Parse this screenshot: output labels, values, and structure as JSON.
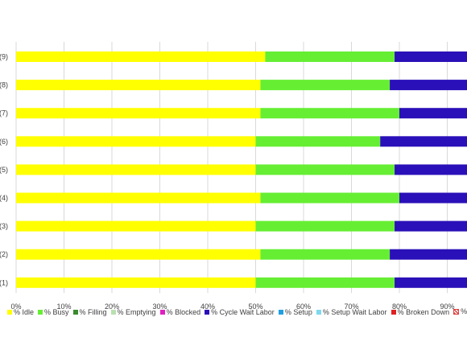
{
  "chart_data": {
    "type": "bar",
    "orientation": "horizontal",
    "stacked": true,
    "categories": [
      "(9)",
      "(8)",
      "(7)",
      "(6)",
      "(5)",
      "(4)",
      "(3)",
      "(2)",
      "(1)"
    ],
    "series": [
      {
        "name": "% Idle",
        "color": "#ffff00",
        "values": [
          52,
          51,
          51,
          50,
          50,
          51,
          50,
          51,
          50
        ]
      },
      {
        "name": "% Busy",
        "color": "#66ee33",
        "values": [
          27,
          27,
          29,
          26,
          29,
          29,
          29,
          27,
          29
        ]
      },
      {
        "name": "% Filling",
        "color": "#3a8a2e",
        "values": [
          0,
          0,
          0,
          0,
          0,
          0,
          0,
          0,
          0
        ]
      },
      {
        "name": "% Emptying",
        "color": "#b8e0b0",
        "values": [
          0,
          0,
          0,
          0,
          0,
          0,
          0,
          0,
          0
        ]
      },
      {
        "name": "% Blocked",
        "color": "#e020c0",
        "values": [
          0,
          0,
          0,
          0,
          0,
          0,
          0,
          0,
          0
        ]
      },
      {
        "name": "% Cycle Wait Labor",
        "color": "#2a10b8",
        "values": [
          21,
          22,
          20,
          24,
          21,
          20,
          21,
          22,
          21
        ]
      },
      {
        "name": "% Setup",
        "color": "#20a0e0",
        "values": [
          0,
          0,
          0,
          0,
          0,
          0,
          0,
          0,
          0
        ]
      },
      {
        "name": "% Setup Wait Labor",
        "color": "#80d8f0",
        "values": [
          0,
          0,
          0,
          0,
          0,
          0,
          0,
          0,
          0
        ]
      },
      {
        "name": "% Broken Down",
        "color": "#e02020",
        "values": [
          0,
          0,
          0,
          0,
          0,
          0,
          0,
          0,
          0
        ]
      },
      {
        "name": "% Repair Wait",
        "color": "#e04040",
        "pattern": "hatch",
        "values": [
          0,
          0,
          0,
          0,
          0,
          0,
          0,
          0,
          0
        ]
      }
    ],
    "xlim": [
      0,
      100
    ],
    "x_ticks": [
      "0%",
      "10%",
      "20%",
      "30%",
      "40%",
      "50%",
      "60%",
      "70%",
      "80%",
      "90%"
    ],
    "grid": "vertical",
    "legend_position": "bottom"
  }
}
